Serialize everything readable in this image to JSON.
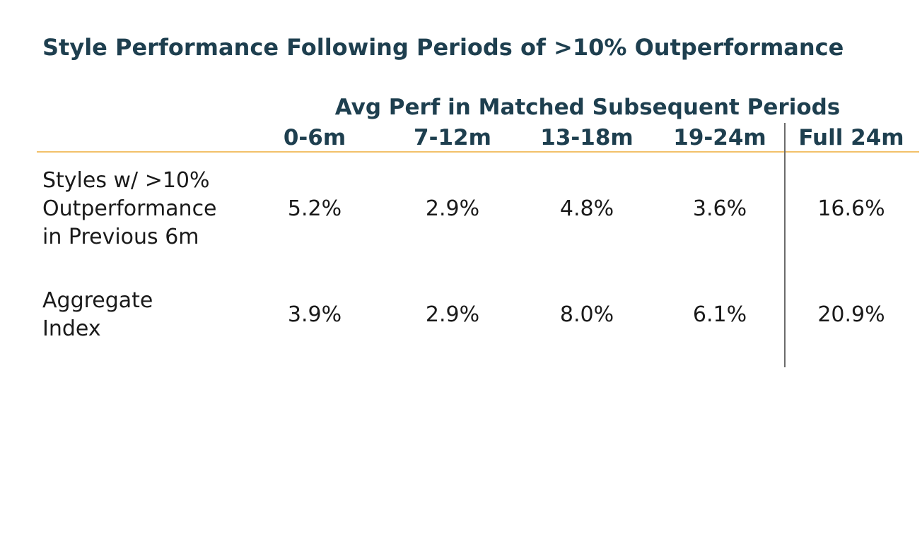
{
  "chart_data": {
    "type": "table",
    "title": "Style Performance Following Periods of >10% Outperformance",
    "group_header": "Avg Perf in Matched Subsequent Periods",
    "columns": [
      "0-6m",
      "7-12m",
      "13-18m",
      "19-24m",
      "Full 24m"
    ],
    "rows": [
      {
        "label_lines": [
          "Styles w/ >10%",
          "Outperformance",
          "in Previous 6m"
        ],
        "values": [
          "5.2%",
          "2.9%",
          "4.8%",
          "3.6%",
          "16.6%"
        ]
      },
      {
        "label_lines": [
          "Aggregate",
          "Index"
        ],
        "values": [
          "3.9%",
          "2.9%",
          "8.0%",
          "6.1%",
          "20.9%"
        ]
      }
    ],
    "colors": {
      "header_text": "#1e3f4f",
      "header_rule": "#f2c16a",
      "divider": "#6b6b6b"
    }
  }
}
